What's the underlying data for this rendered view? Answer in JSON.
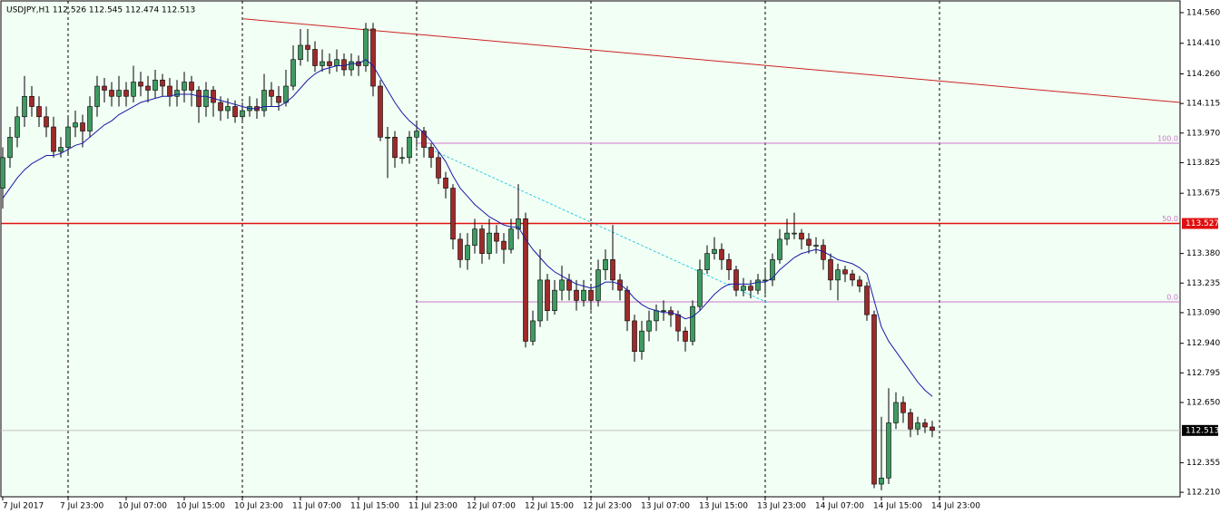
{
  "chart_data": {
    "type": "candlestick",
    "title": "USDJPY,H1  112.526 112.545 112.474 112.513",
    "categories": [
      "7 Jul 2017",
      "7 Jul 23:00",
      "10 Jul 07:00",
      "10 Jul 15:00",
      "10 Jul 23:00",
      "11 Jul 07:00",
      "11 Jul 15:00",
      "11 Jul 23:00",
      "12 Jul 07:00",
      "12 Jul 15:00",
      "12 Jul 23:00",
      "13 Jul 07:00",
      "13 Jul 15:00",
      "13 Jul 23:00",
      "14 Jul 07:00",
      "14 Jul 15:00",
      "14 Jul 23:00"
    ],
    "open": [
      113.7,
      113.85,
      113.95,
      114.05,
      114.15,
      114.1,
      114.05,
      114.0,
      113.88,
      113.9,
      114.0,
      114.02,
      113.98,
      114.1,
      114.2,
      114.18,
      114.15,
      114.18,
      114.15,
      114.22,
      114.2,
      114.18,
      114.23,
      114.2,
      114.15,
      114.18,
      114.22,
      114.18,
      114.1,
      114.18,
      114.12,
      114.08,
      114.1,
      114.05,
      114.08,
      114.1,
      114.08,
      114.18,
      114.15,
      114.12,
      114.2,
      114.33,
      114.4,
      114.38,
      114.3,
      114.32,
      114.3,
      114.33,
      114.28,
      114.32,
      114.3,
      114.48,
      114.2,
      113.95,
      113.95,
      113.85,
      113.85,
      113.95,
      113.98,
      113.9,
      113.85,
      113.75,
      113.7,
      113.45,
      113.35,
      113.42,
      113.5,
      113.38,
      113.48,
      113.44,
      113.4,
      113.5,
      113.55,
      112.95,
      113.05,
      113.25,
      113.1,
      113.2,
      113.25,
      113.2,
      113.15,
      113.2,
      113.15,
      113.3,
      113.35,
      113.25,
      113.2,
      113.05,
      112.9,
      113.0,
      113.05,
      113.1,
      113.1,
      113.08,
      113.0,
      112.95,
      113.12,
      113.3,
      113.38,
      113.4,
      113.35,
      113.3,
      113.2,
      113.22,
      113.2,
      113.25,
      113.25,
      113.35,
      113.45,
      113.48,
      113.48,
      113.45,
      113.42,
      113.42,
      113.35,
      113.25,
      113.3,
      113.28,
      113.25,
      113.22,
      113.08,
      112.25,
      112.28,
      112.55,
      112.65,
      112.6,
      112.52,
      112.55,
      112.53
    ],
    "high": [
      113.9,
      114.0,
      114.1,
      114.25,
      114.2,
      114.15,
      114.1,
      114.05,
      113.95,
      114.05,
      114.08,
      114.06,
      114.15,
      114.25,
      114.24,
      114.22,
      114.25,
      114.22,
      114.3,
      114.27,
      114.25,
      114.28,
      114.26,
      114.24,
      114.23,
      114.27,
      114.25,
      114.2,
      114.22,
      114.2,
      114.15,
      114.14,
      114.13,
      114.12,
      114.15,
      114.14,
      114.26,
      114.22,
      114.2,
      114.28,
      114.4,
      114.48,
      114.48,
      114.42,
      114.38,
      114.36,
      114.38,
      114.36,
      114.36,
      114.35,
      114.51,
      114.51,
      114.23,
      114.0,
      113.98,
      113.9,
      113.98,
      114.02,
      114.0,
      113.92,
      113.88,
      113.78,
      113.72,
      113.48,
      113.48,
      113.55,
      113.52,
      113.55,
      113.52,
      113.48,
      113.55,
      113.72,
      113.58,
      113.1,
      113.4,
      113.28,
      113.25,
      113.32,
      113.28,
      113.25,
      113.25,
      113.22,
      113.35,
      113.4,
      113.52,
      113.28,
      113.22,
      113.08,
      113.05,
      113.1,
      113.13,
      113.15,
      113.12,
      113.1,
      113.02,
      113.15,
      113.35,
      113.42,
      113.46,
      113.43,
      113.38,
      113.32,
      113.26,
      113.25,
      113.28,
      113.3,
      113.38,
      113.5,
      113.55,
      113.58,
      113.5,
      113.48,
      113.46,
      113.45,
      113.38,
      113.33,
      113.32,
      113.3,
      113.27,
      113.24,
      113.1,
      112.58,
      112.72,
      112.7,
      112.68,
      112.62,
      112.58,
      112.57,
      112.56
    ],
    "low": [
      113.6,
      113.8,
      113.9,
      114.0,
      114.05,
      114.0,
      113.95,
      113.85,
      113.85,
      113.87,
      113.95,
      113.9,
      113.95,
      114.05,
      114.12,
      114.1,
      114.1,
      114.1,
      114.12,
      114.15,
      114.12,
      114.14,
      114.15,
      114.1,
      114.1,
      114.12,
      114.1,
      114.02,
      114.05,
      114.05,
      114.03,
      114.04,
      114.02,
      114.03,
      114.05,
      114.04,
      114.05,
      114.1,
      114.08,
      114.1,
      114.18,
      114.3,
      114.32,
      114.27,
      114.27,
      114.26,
      114.27,
      114.25,
      114.25,
      114.25,
      114.27,
      114.15,
      113.93,
      113.75,
      113.8,
      113.82,
      113.82,
      113.9,
      113.85,
      113.8,
      113.72,
      113.65,
      113.4,
      113.31,
      113.3,
      113.38,
      113.33,
      113.35,
      113.38,
      113.33,
      113.38,
      113.45,
      112.92,
      112.93,
      113.02,
      113.05,
      113.08,
      113.15,
      113.15,
      113.1,
      113.12,
      113.1,
      113.12,
      113.25,
      113.2,
      113.15,
      113.0,
      112.85,
      112.86,
      112.95,
      113.0,
      113.05,
      113.02,
      112.95,
      112.9,
      112.93,
      113.1,
      113.28,
      113.35,
      113.3,
      113.25,
      113.17,
      113.17,
      113.16,
      113.18,
      113.18,
      113.22,
      113.33,
      113.42,
      113.45,
      113.4,
      113.38,
      113.38,
      113.3,
      113.2,
      113.15,
      113.24,
      113.22,
      113.19,
      113.05,
      112.23,
      112.22,
      112.25,
      112.52,
      112.55,
      112.48,
      112.49,
      112.5,
      112.48
    ],
    "close": [
      113.85,
      113.95,
      114.05,
      114.15,
      114.1,
      114.05,
      114.0,
      113.88,
      113.9,
      114.0,
      114.02,
      113.98,
      114.1,
      114.2,
      114.18,
      114.15,
      114.18,
      114.15,
      114.22,
      114.2,
      114.18,
      114.23,
      114.2,
      114.15,
      114.18,
      114.22,
      114.18,
      114.1,
      114.18,
      114.12,
      114.08,
      114.1,
      114.05,
      114.08,
      114.1,
      114.08,
      114.18,
      114.15,
      114.12,
      114.2,
      114.33,
      114.4,
      114.38,
      114.3,
      114.32,
      114.3,
      114.33,
      114.28,
      114.32,
      114.3,
      114.48,
      114.2,
      113.95,
      113.95,
      113.85,
      113.85,
      113.95,
      113.98,
      113.9,
      113.85,
      113.75,
      113.7,
      113.45,
      113.35,
      113.42,
      113.5,
      113.38,
      113.48,
      113.44,
      113.4,
      113.5,
      113.55,
      112.95,
      113.05,
      113.25,
      113.1,
      113.2,
      113.25,
      113.2,
      113.15,
      113.2,
      113.15,
      113.3,
      113.35,
      113.25,
      113.2,
      113.05,
      112.9,
      113.0,
      113.05,
      113.1,
      113.1,
      113.08,
      113.0,
      112.95,
      113.12,
      113.3,
      113.38,
      113.4,
      113.35,
      113.3,
      113.2,
      113.22,
      113.2,
      113.25,
      113.25,
      113.35,
      113.45,
      113.48,
      113.48,
      113.45,
      113.42,
      113.42,
      113.35,
      113.25,
      113.3,
      113.28,
      113.25,
      113.22,
      113.08,
      112.25,
      112.28,
      112.55,
      112.65,
      112.6,
      112.52,
      112.55,
      112.53,
      112.513
    ],
    "up_color": "#3f9a62",
    "down_color": "#9e2a2a",
    "ma": {
      "color": "#1a1aa8",
      "values": [
        113.65,
        113.7,
        113.75,
        113.79,
        113.82,
        113.84,
        113.86,
        113.86,
        113.87,
        113.89,
        113.91,
        113.92,
        113.95,
        113.98,
        114.01,
        114.03,
        114.06,
        114.08,
        114.1,
        114.12,
        114.13,
        114.14,
        114.15,
        114.15,
        114.16,
        114.16,
        114.16,
        114.15,
        114.15,
        114.14,
        114.13,
        114.12,
        114.11,
        114.1,
        114.09,
        114.09,
        114.1,
        114.1,
        114.1,
        114.12,
        114.15,
        114.19,
        114.23,
        114.26,
        114.28,
        114.29,
        114.3,
        114.3,
        114.31,
        114.31,
        114.33,
        114.3,
        114.24,
        114.18,
        114.12,
        114.07,
        114.03,
        114.0,
        113.97,
        113.93,
        113.88,
        113.83,
        113.76,
        113.7,
        113.66,
        113.62,
        113.59,
        113.56,
        113.54,
        113.52,
        113.51,
        113.51,
        113.45,
        113.4,
        113.36,
        113.32,
        113.29,
        113.27,
        113.25,
        113.23,
        113.22,
        113.21,
        113.22,
        113.24,
        113.24,
        113.23,
        113.2,
        113.16,
        113.13,
        113.11,
        113.1,
        113.09,
        113.09,
        113.08,
        113.06,
        113.07,
        113.1,
        113.14,
        113.18,
        113.21,
        113.23,
        113.23,
        113.23,
        113.23,
        113.24,
        113.24,
        113.26,
        113.3,
        113.33,
        113.36,
        113.38,
        113.39,
        113.4,
        113.39,
        113.37,
        113.35,
        113.34,
        113.33,
        113.31,
        113.28,
        113.15,
        113.02,
        112.95,
        112.9,
        112.85,
        112.8,
        112.75,
        112.71,
        112.68
      ]
    },
    "trendline": {
      "color": "#cc2222",
      "values": [
        114.53,
        114.12
      ]
    },
    "fibo_trend": {
      "color": "#33ccee",
      "values": [
        113.91,
        113.14
      ]
    },
    "hline": {
      "value": 113.527,
      "label": "113.527",
      "color": "#e01010"
    },
    "last_price": {
      "value": 112.513,
      "label": "112.513",
      "color": "#c0c0c0"
    },
    "fibo_levels": [
      {
        "value": 113.92,
        "label": "100.0"
      },
      {
        "value": 113.527,
        "label": "50.0"
      },
      {
        "value": 113.143,
        "label": "0.0"
      }
    ],
    "fibo_color": "#cc77cc",
    "ylim": [
      112.188,
      114.622
    ],
    "yticks": [
      {
        "value": 114.56,
        "label": "114.560"
      },
      {
        "value": 114.41,
        "label": "114.410"
      },
      {
        "value": 114.26,
        "label": "114.260"
      },
      {
        "value": 114.115,
        "label": "114.115"
      },
      {
        "value": 113.97,
        "label": "113.970"
      },
      {
        "value": 113.825,
        "label": "113.825"
      },
      {
        "value": 113.675,
        "label": "113.675"
      },
      {
        "value": 113.38,
        "label": "113.380"
      },
      {
        "value": 113.235,
        "label": "113.235"
      },
      {
        "value": 113.09,
        "label": "113.090"
      },
      {
        "value": 112.94,
        "label": "112.940"
      },
      {
        "value": 112.795,
        "label": "112.795"
      },
      {
        "value": 112.65,
        "label": "112.650"
      },
      {
        "value": 112.355,
        "label": "112.355"
      },
      {
        "value": 112.21,
        "label": "112.210"
      }
    ]
  }
}
